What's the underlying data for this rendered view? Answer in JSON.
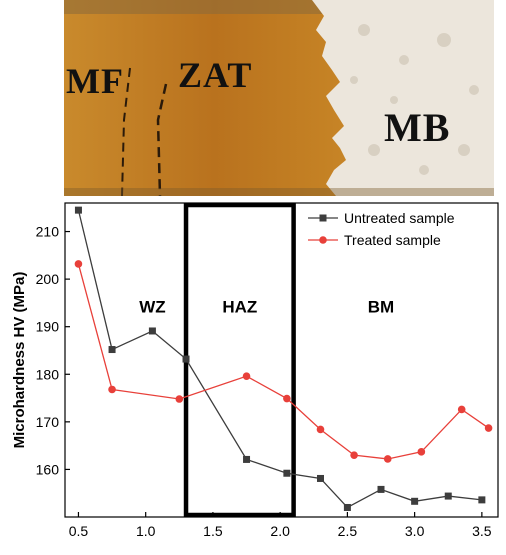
{
  "photo": {
    "labels": [
      "MF",
      "ZAT",
      "MB"
    ],
    "colors": {
      "weld": "#c07a22",
      "haz": "#b06a1c",
      "base": "#ece6dc"
    }
  },
  "chart_data": {
    "type": "line",
    "ylabel": "Microhardness HV (MPa)",
    "xlabel": "",
    "xlim": [
      0.4,
      3.62
    ],
    "ylim": [
      150,
      216
    ],
    "xticks": [
      0.5,
      1.0,
      1.5,
      2.0,
      2.5,
      3.0,
      3.5
    ],
    "yticks": [
      160,
      170,
      180,
      190,
      200,
      210
    ],
    "legend_position": "top-right",
    "series": [
      {
        "name": "Untreated sample",
        "color": "#3d3d3d",
        "marker": "square",
        "x": [
          0.5,
          0.75,
          1.05,
          1.3,
          1.75,
          2.05,
          2.3,
          2.5,
          2.75,
          3.0,
          3.25,
          3.5
        ],
        "y": [
          214.5,
          185.2,
          189.1,
          183.2,
          162.1,
          159.2,
          158.1,
          152.0,
          155.8,
          153.3,
          154.4,
          153.6
        ]
      },
      {
        "name": "Treated sample",
        "color": "#e8403a",
        "marker": "circle",
        "x": [
          0.5,
          0.75,
          1.25,
          1.75,
          2.05,
          2.3,
          2.55,
          2.8,
          3.05,
          3.35,
          3.55
        ],
        "y": [
          203.2,
          176.8,
          174.8,
          179.6,
          174.9,
          168.4,
          163.0,
          162.2,
          163.7,
          172.6,
          168.7
        ]
      }
    ],
    "annotations": [
      "WZ",
      "HAZ",
      "BM"
    ],
    "haz_box_x": [
      1.3,
      2.1
    ]
  }
}
